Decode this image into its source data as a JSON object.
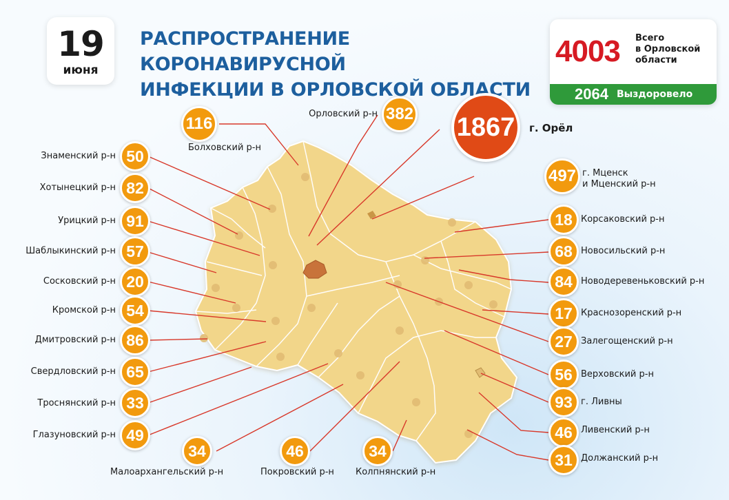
{
  "date": {
    "day": "19",
    "month": "июня"
  },
  "title": {
    "line1": "РАСПРОСТРАНЕНИЕ КОРОНАВИРУСНОЙ",
    "line2": "ИНФЕКЦИИ В ОРЛОВСКОЙ ОБЛАСТИ"
  },
  "total": {
    "number": "4003",
    "label_line1": "Всего",
    "label_line2": "в Орловской",
    "label_line3": "области"
  },
  "recovered": {
    "number": "2064",
    "label": "Выздоровело"
  },
  "colors": {
    "title": "#1d5f9e",
    "badge": "#f29a0e",
    "city_badge": "#e04a16",
    "total": "#d61a23",
    "recovered": "#2f9a3a",
    "map_fill": "#f2d68a",
    "connector": "#d8382a"
  },
  "districts": {
    "orel_city": {
      "value": "1867",
      "name": "г. Орёл"
    },
    "orlovsky": {
      "value": "382",
      "name": "Орловский р-н"
    },
    "bolkhovsky": {
      "value": "116",
      "name": "Болховский р-н"
    },
    "mtsensk": {
      "value": "497",
      "name_line1": "г. Мценск",
      "name_line2": "и Мценский р-н"
    },
    "znamensky": {
      "value": "50",
      "name": "Знаменский р-н"
    },
    "khotynetsky": {
      "value": "82",
      "name": "Хотынецкий р-н"
    },
    "uritsky": {
      "value": "91",
      "name": "Урицкий р-н"
    },
    "shablykinsky": {
      "value": "57",
      "name": "Шаблыкинский р-н"
    },
    "soskovsky": {
      "value": "20",
      "name": "Сосковский р-н"
    },
    "kromskoy": {
      "value": "54",
      "name": "Кромской р-н"
    },
    "dmitrovsky": {
      "value": "86",
      "name": "Дмитровский р-н"
    },
    "sverdlovsky": {
      "value": "65",
      "name": "Свердловский р-н"
    },
    "trosnyansky": {
      "value": "33",
      "name": "Троснянский р-н"
    },
    "glazunovsky": {
      "value": "49",
      "name": "Глазуновский р-н"
    },
    "maloarkhangelsky": {
      "value": "34",
      "name": "Малоархангельский р-н"
    },
    "pokrovsky": {
      "value": "46",
      "name": "Покровский р-н"
    },
    "kolpnyansky": {
      "value": "34",
      "name": "Колпнянский р-н"
    },
    "korsakovsky": {
      "value": "18",
      "name": "Корсаковский р-н"
    },
    "novosilsky": {
      "value": "68",
      "name": "Новосильский р-н"
    },
    "novoderevenkovsky": {
      "value": "84",
      "name": "Новодеревеньковский р-н"
    },
    "krasnozorensky": {
      "value": "17",
      "name": "Краснозоренский р-н"
    },
    "zalegoshchensky": {
      "value": "27",
      "name": "Залегощенский р-н"
    },
    "verkhovsky": {
      "value": "56",
      "name": "Верховский р-н"
    },
    "livny_city": {
      "value": "93",
      "name": "г. Ливны"
    },
    "livensky": {
      "value": "46",
      "name": "Ливенский р-н"
    },
    "dolzhansky": {
      "value": "31",
      "name": "Должанский р-н"
    }
  }
}
